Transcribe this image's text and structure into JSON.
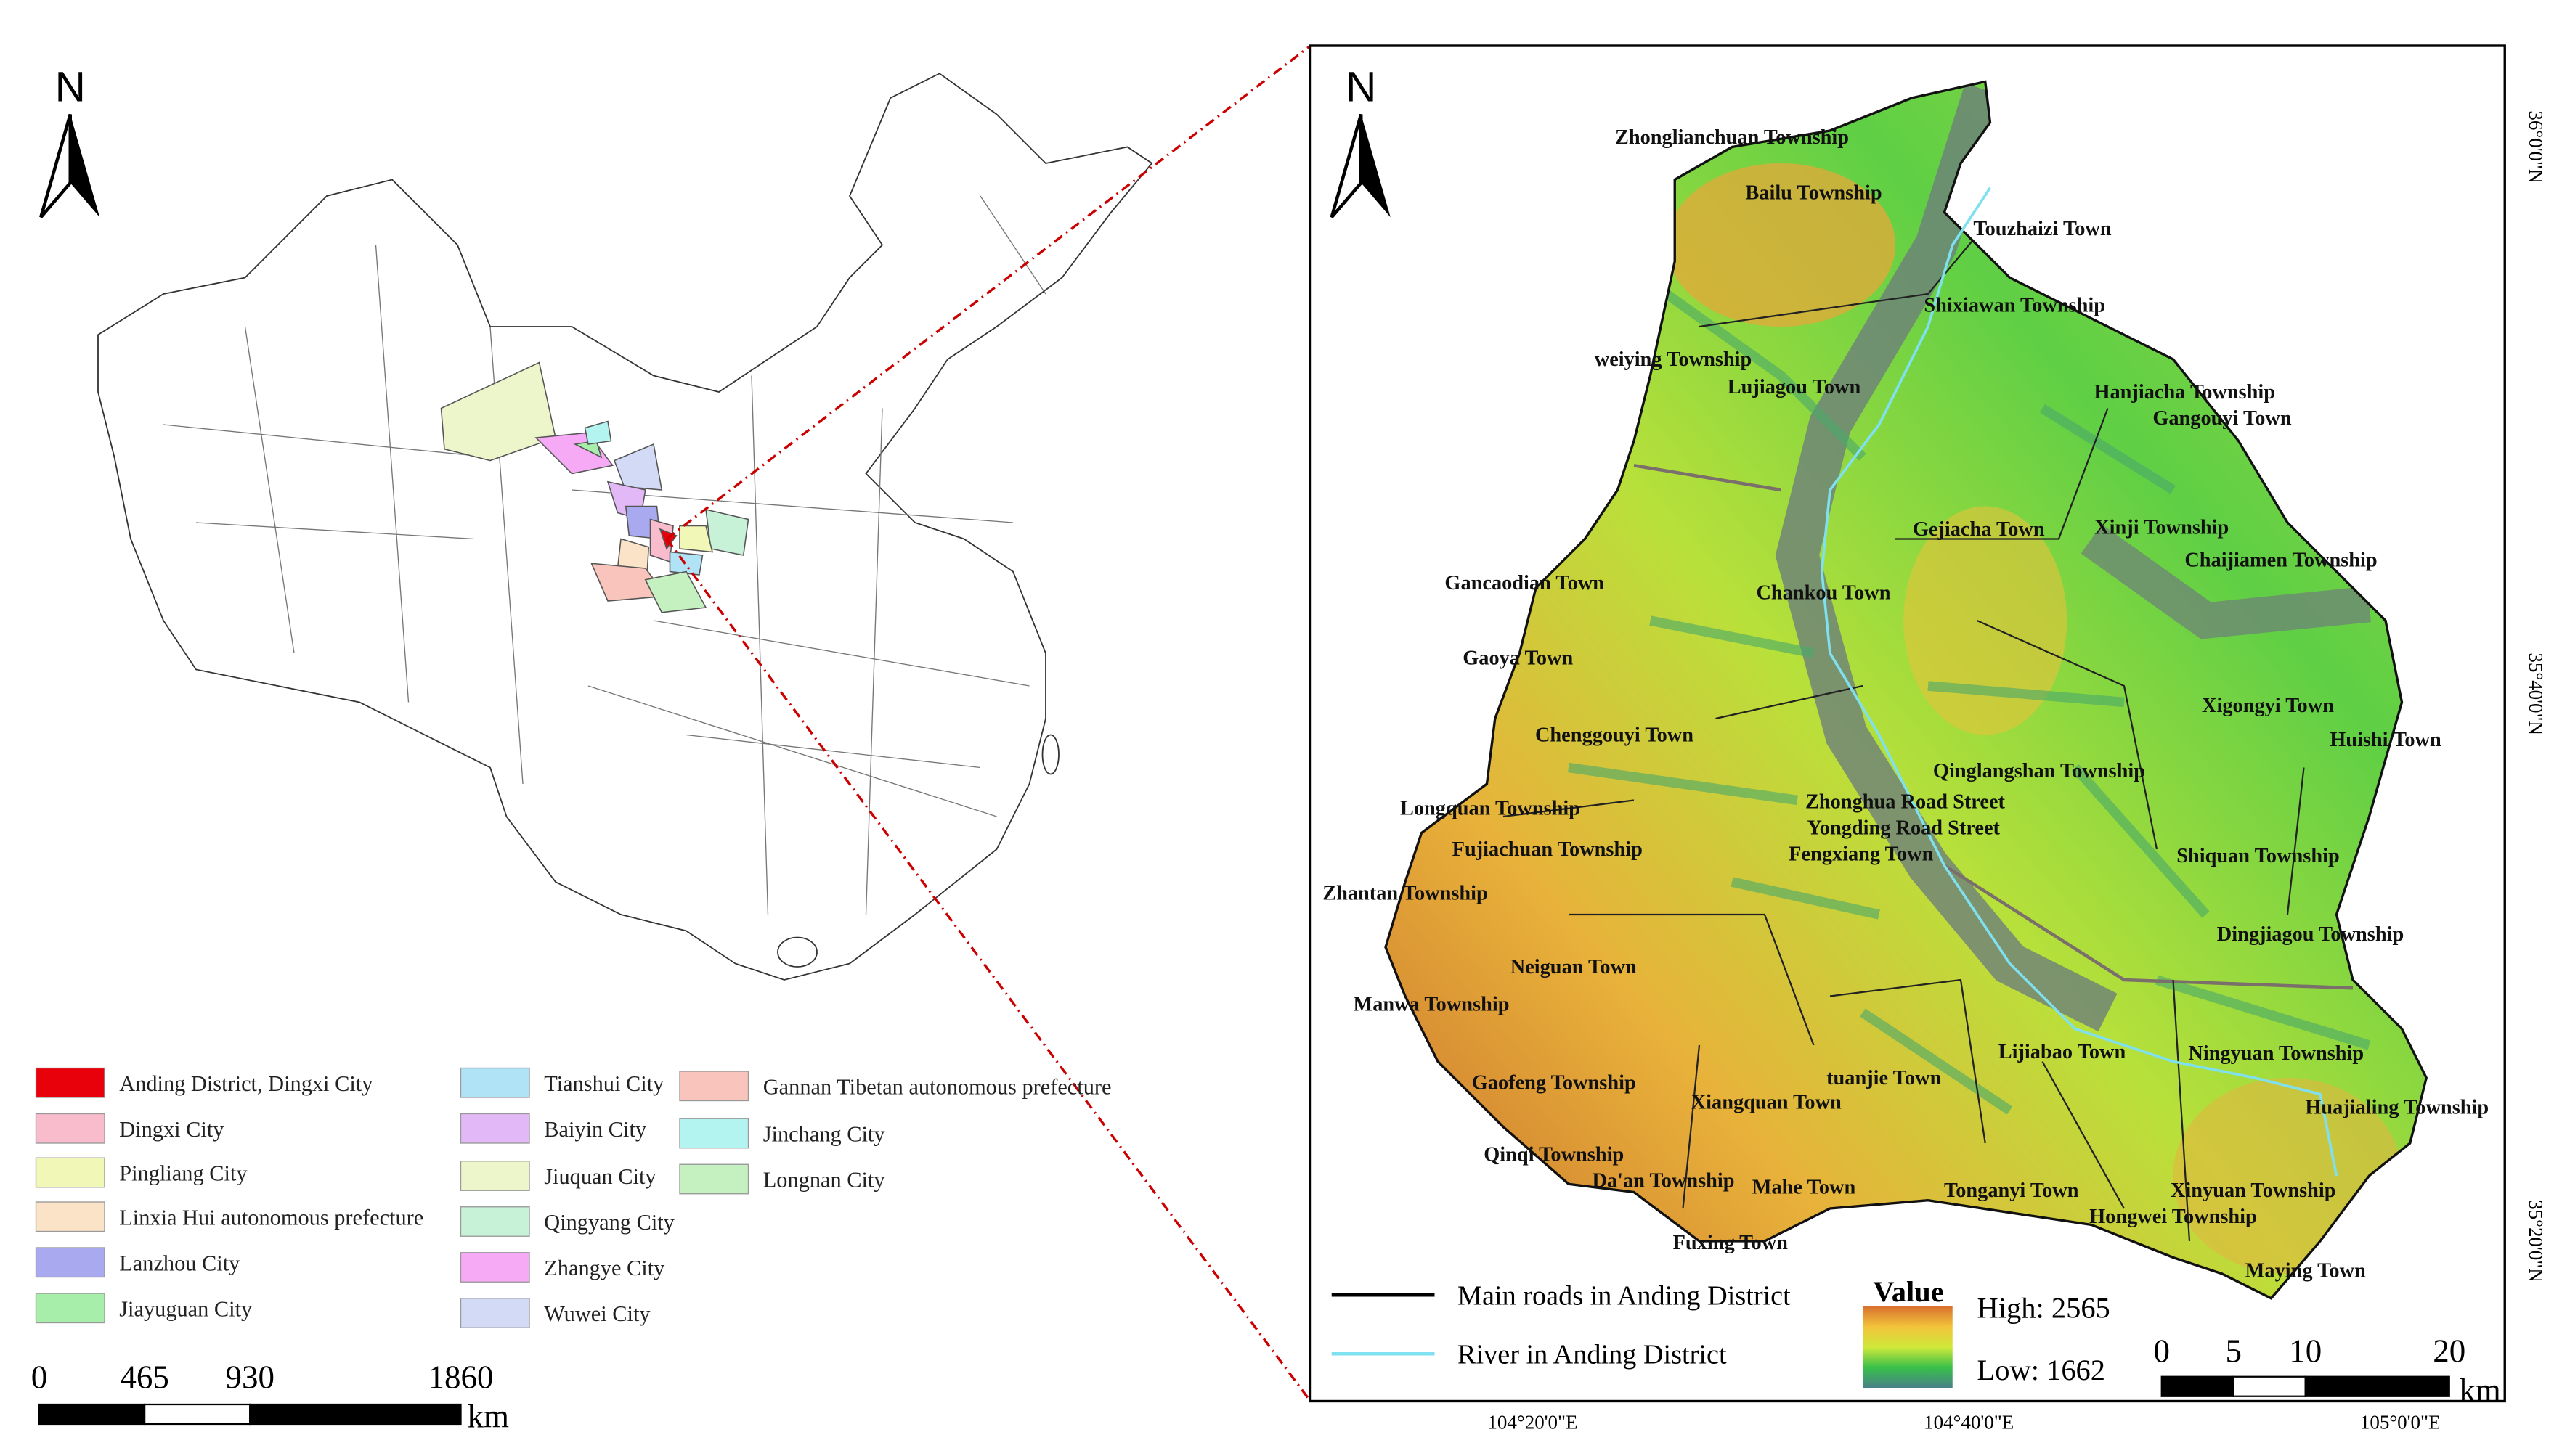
{
  "left_map": {
    "north": "N",
    "legend": [
      {
        "label": "Anding District, Dingxi City",
        "color": "#e8000b"
      },
      {
        "label": "Dingxi City",
        "color": "#f8bccd"
      },
      {
        "label": "Pingliang City",
        "color": "#f1f7b6"
      },
      {
        "label": "Linxia Hui autonomous prefecture",
        "color": "#fae3c6"
      },
      {
        "label": "Lanzhou City",
        "color": "#a9a9ef"
      },
      {
        "label": "Jiayuguan City",
        "color": "#a6eea9"
      },
      {
        "label": "Tianshui City",
        "color": "#b0e3f6"
      },
      {
        "label": "Baiyin City",
        "color": "#e2b9f6"
      },
      {
        "label": "Jiuquan City",
        "color": "#ecf6ca"
      },
      {
        "label": "Qingyang City",
        "color": "#c8f2d7"
      },
      {
        "label": "Zhangye City",
        "color": "#f6a9f4"
      },
      {
        "label": "Wuwei City",
        "color": "#d3daf6"
      },
      {
        "label": "Gannan Tibetan autonomous prefecture",
        "color": "#f8c4bb"
      },
      {
        "label": "Jinchang City",
        "color": "#b3f4f0"
      },
      {
        "label": "Longnan City",
        "color": "#c5f0c0"
      }
    ],
    "scale": {
      "ticks": [
        0,
        465,
        930,
        1860
      ],
      "unit": "km"
    }
  },
  "right_map": {
    "north": "N",
    "towns": [
      "Zhonglianchuan Township",
      "Bailu Township",
      "Touzhaizi Town",
      "Shixiawan Township",
      "weiying Township",
      "Lujiagou Town",
      "Hanjiacha Township",
      "Gangouyi Town",
      "Xinji Township",
      "Gejiacha Town",
      "Chaijiamen Township",
      "Gancaodian Town",
      "Chankou Town",
      "Gaoya Town",
      "Xigongyi Town",
      "Huishi Town",
      "Chenggouyi Town",
      "Qinglangshan Township",
      "Zhonghua Road Street",
      "Longquan Township",
      "Yongding Road Street",
      "Fujiachuan Township",
      "Fengxiang Town",
      "Shiquan Township",
      "Zhantan Township",
      "Dingjiagou Township",
      "Neiguan Town",
      "Manwa Township",
      "Lijiabao Town",
      "Ningyuan Township",
      "tuanjie Town",
      "Gaofeng Township",
      "Xiangquan Town",
      "Huajialing Township",
      "Qinqi Township",
      "Da'an Township",
      "Mahe Town",
      "Tonganyi Town",
      "Xinyuan Township",
      "Hongwei Township",
      "Fuxing Town",
      "Maying Town"
    ],
    "lat_labels": [
      "36°0'0\"N",
      "35°40'0\"N",
      "35°20'0\"N"
    ],
    "lon_labels": [
      "104°20'0\"E",
      "104°40'0\"E",
      "105°0'0\"E"
    ],
    "legend": {
      "roads": "Main roads in Anding District",
      "river": "River in Anding District",
      "value_title": "Value",
      "high": "High: 2565",
      "low": "Low: 1662"
    },
    "scale": {
      "ticks": [
        0,
        5,
        10,
        20
      ],
      "unit": "km"
    }
  }
}
